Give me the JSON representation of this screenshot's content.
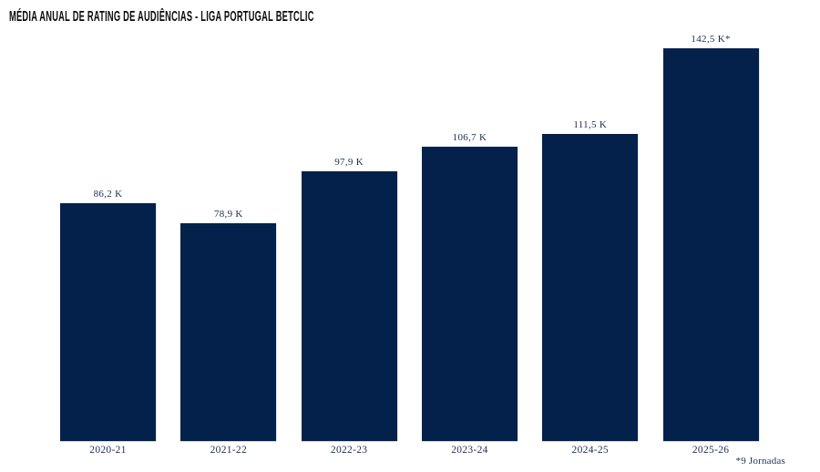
{
  "title": "MÉDIA ANUAL DE RATING DE AUDIÊNCIAS - LIGA PORTUGAL BETCLIC",
  "footnote": "*9 Jornadas",
  "colors": {
    "bar": "#04214c",
    "title_text": "#0b0b0b",
    "label_text": "#1d2e4f",
    "background": "#ffffff"
  },
  "chart_data": {
    "type": "bar",
    "title": "MÉDIA ANUAL DE RATING DE AUDIÊNCIAS - LIGA PORTUGAL BETCLIC",
    "categories": [
      "2020-21",
      "2021-22",
      "2022-23",
      "2023-24",
      "2024-25",
      "2025-26"
    ],
    "values": [
      86.2,
      78.9,
      97.9,
      106.7,
      111.5,
      142.5
    ],
    "value_labels": [
      "86,2 K",
      "78,9 K",
      "97,9 K",
      "106,7 K",
      "111,5 K",
      "142,5 K*"
    ],
    "unit": "K",
    "xlabel": "",
    "ylabel": "",
    "ylim": [
      0,
      150
    ],
    "grid": false,
    "legend": false,
    "axis_lines": false,
    "bar_color": "#04214c",
    "annotation": "*9 Jornadas"
  }
}
